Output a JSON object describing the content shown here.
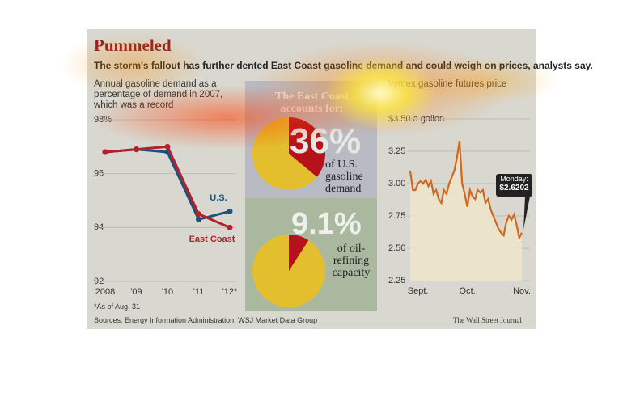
{
  "header": {
    "title": "Pummeled",
    "subtitle": "The storm's fallout has further dented East Coast gasoline demand and could weigh on prices, analysts say."
  },
  "chart_data": [
    {
      "type": "line",
      "title": "Annual gasoline demand as a percentage of demand in 2007, which was a record",
      "categories": [
        "2008",
        "'09",
        "'10",
        "'11",
        "'12*"
      ],
      "series": [
        {
          "name": "U.S.",
          "color": "#1f4f7a",
          "values": [
            96.8,
            96.9,
            96.8,
            94.3,
            94.6
          ]
        },
        {
          "name": "East Coast",
          "color": "#b3212b",
          "values": [
            96.8,
            96.9,
            97.0,
            94.5,
            94.0
          ]
        }
      ],
      "ylim": [
        92,
        98
      ],
      "yticks": [
        92,
        94,
        96,
        {
          "value": 98,
          "label": "98%"
        }
      ],
      "grid": true,
      "note": "*As of Aug. 31"
    },
    {
      "type": "pie",
      "title": "The East Coast accounts for:",
      "values": [
        36
      ],
      "value_labels": [
        "36%"
      ],
      "label": "of U.S. gasoline demand",
      "color": "#b5121b",
      "rest_color": "#e3bf2e"
    },
    {
      "type": "pie",
      "values": [
        9.1
      ],
      "value_labels": [
        "9.1%"
      ],
      "label": "of oil-refining capacity",
      "color": "#b5121b",
      "rest_color": "#e3bf2e"
    },
    {
      "type": "line",
      "title": "Nymex gasoline futures price",
      "categories": [
        null,
        null,
        null,
        "Sept.",
        null,
        null,
        null,
        null,
        null,
        null,
        null,
        null,
        null,
        null,
        null,
        null,
        null,
        null,
        null,
        null,
        null,
        null,
        "Oct.",
        null,
        null,
        null,
        null,
        null,
        null,
        null,
        null,
        null,
        null,
        null,
        null,
        null,
        null,
        null,
        null,
        null,
        null,
        null,
        null,
        "Nov."
      ],
      "values": [
        3.1,
        2.95,
        2.95,
        3.0,
        3.02,
        3.0,
        3.03,
        2.98,
        3.02,
        2.92,
        2.95,
        2.88,
        2.85,
        2.95,
        2.92,
        3.0,
        3.05,
        3.1,
        3.2,
        3.33,
        3.0,
        2.92,
        2.82,
        2.95,
        2.9,
        2.88,
        2.95,
        2.93,
        2.95,
        2.85,
        2.88,
        2.8,
        2.75,
        2.7,
        2.65,
        2.62,
        2.6,
        2.7,
        2.75,
        2.72,
        2.76,
        2.68,
        2.58,
        2.6202
      ],
      "value_labels": [
        null,
        null,
        null,
        null,
        null,
        null,
        null,
        null,
        null,
        null,
        null,
        null,
        null,
        null,
        null,
        null,
        null,
        null,
        null,
        null,
        null,
        null,
        null,
        null,
        null,
        null,
        null,
        null,
        null,
        null,
        null,
        null,
        null,
        null,
        null,
        null,
        null,
        null,
        null,
        null,
        null,
        null,
        null,
        "$2.6202"
      ],
      "color": "#d2661e",
      "annotation": "Monday:",
      "ylim": [
        2.25,
        3.5
      ],
      "yticks": [
        2.25,
        {
          "value": 2.5,
          "label": "2.50"
        },
        2.75,
        {
          "value": 3,
          "label": "3.00"
        },
        3.25,
        {
          "value": 3.5,
          "label": "$3.50 a gallon"
        }
      ],
      "grid": true
    }
  ],
  "footer": {
    "source": "Sources: Energy Information Administration; WSJ Market Data Group",
    "credit": "The Wall Street Journal"
  }
}
